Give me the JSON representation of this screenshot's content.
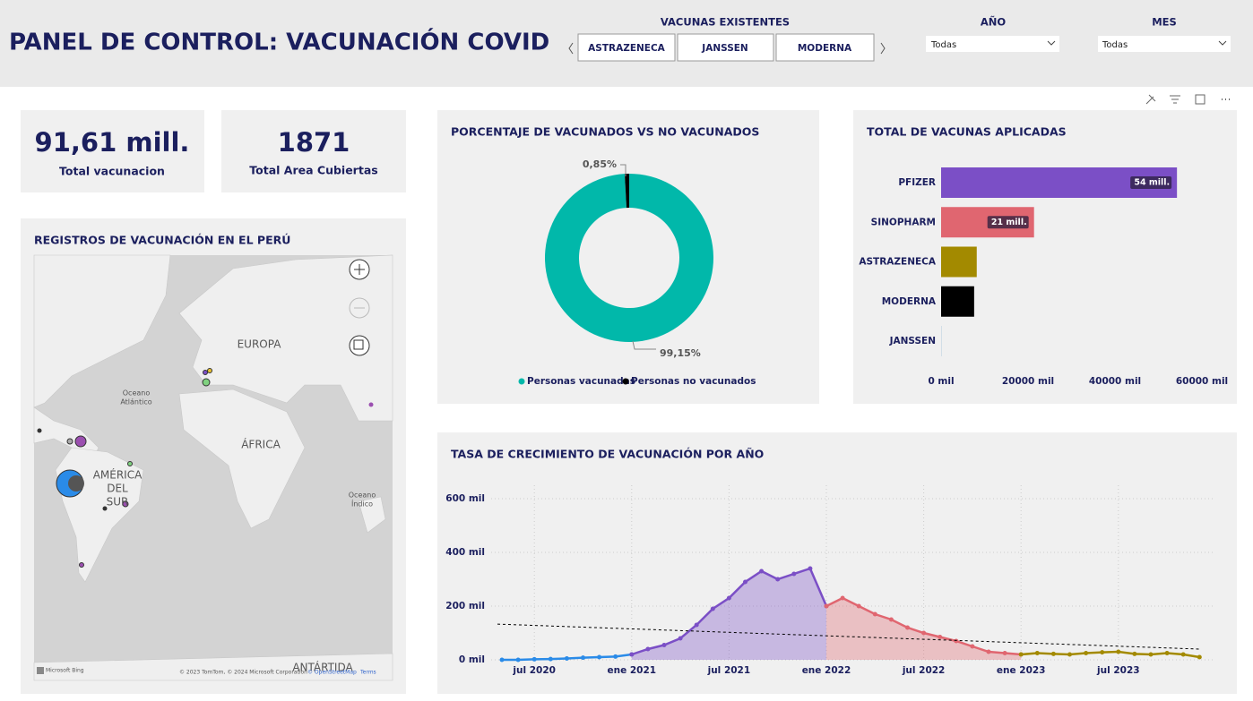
{
  "header": {
    "title": "PANEL DE CONTROL: VACUNACIÓN COVID",
    "vaccine_slicer": {
      "label": "VACUNAS EXISTENTES",
      "options": [
        "ASTRAZENECA",
        "JANSSEN",
        "MODERNA"
      ]
    },
    "year_slicer": {
      "label": "AÑO",
      "value": "Todas"
    },
    "month_slicer": {
      "label": "MES",
      "value": "Todas"
    }
  },
  "kpis": [
    {
      "value": "91,61 mill.",
      "label": "Total vacunacion"
    },
    {
      "value": "1871",
      "label": "Total Area Cubiertas"
    }
  ],
  "map": {
    "title": "REGISTROS DE VACUNACIÓN EN EL PERÚ",
    "labels": [
      "EUROPA",
      "ÁFRICA",
      "AMÉRICA",
      "DEL",
      "SUR",
      "Oceano",
      "Atlántico",
      "Oceano",
      "Índico",
      "ANTÁRTIDA"
    ],
    "attribution": [
      "Microsoft Bing",
      "© 2023 TomTom, © 2024 Microsoft Corporation",
      "© OpenStreetMap",
      "Terms"
    ]
  },
  "chart_data": [
    {
      "type": "donut",
      "title": "PORCENTAJE DE VACUNADOS VS NO VACUNADOS",
      "categories": [
        "Personas vacunadas",
        "Personas no vacunados"
      ],
      "values": [
        99.15,
        0.85
      ],
      "value_labels": [
        "99,15%",
        "0,85%"
      ],
      "colors": [
        "#01B8AA",
        "#000000"
      ]
    },
    {
      "type": "bar",
      "orientation": "horizontal",
      "title": "TOTAL DE VACUNAS APLICADAS",
      "categories": [
        "PFIZER",
        "SINOPHARM",
        "ASTRAZENECA",
        "MODERNA",
        "JANSSEN"
      ],
      "values": [
        54260000,
        21380000,
        8200000,
        7600000,
        30000
      ],
      "value_labels": [
        "54 mill.",
        "21 mill.",
        null,
        null,
        null
      ],
      "colors": [
        "#7B4FC6",
        "#E06670",
        "#A38A00",
        "#000000",
        "#1F77B4"
      ],
      "xlim": [
        0,
        60000000
      ],
      "xticks": [
        {
          "value": 0,
          "label": "0 mil"
        },
        {
          "value": 20000000,
          "label": "20000 mil"
        },
        {
          "value": 40000000,
          "label": "40000 mil"
        },
        {
          "value": 60000000,
          "label": "60000 mil"
        }
      ]
    },
    {
      "type": "line",
      "title": "TASA DE CRECIMIENTO DE VACUNACIÓN POR AÑO",
      "categories": [
        null,
        null,
        "jul 2020",
        null,
        null,
        null,
        null,
        null,
        "ene 2021",
        null,
        null,
        null,
        null,
        null,
        "jul 2021",
        null,
        null,
        null,
        null,
        null,
        "ene 2022",
        null,
        null,
        null,
        null,
        null,
        "jul 2022",
        null,
        null,
        null,
        null,
        null,
        "ene 2023",
        null,
        null,
        null,
        null,
        null,
        "jul 2023",
        null,
        null,
        null,
        null,
        null
      ],
      "ylim": [
        0,
        650000
      ],
      "yticks": [
        {
          "value": 0,
          "label": "0 mil"
        },
        {
          "value": 200000,
          "label": "200 mil"
        },
        {
          "value": 400000,
          "label": "400 mil"
        },
        {
          "value": 600000,
          "label": "600 mil"
        }
      ],
      "grid": true,
      "series": [
        {
          "color": "#2A8BE8",
          "values": [
            0,
            0,
            2000,
            3000,
            5000,
            8000,
            10000,
            12000,
            20000,
            null,
            null,
            null,
            null,
            null,
            null,
            null,
            null,
            null,
            null,
            null,
            null,
            null,
            null,
            null,
            null,
            null,
            null,
            null,
            null,
            null,
            null,
            null,
            null,
            null,
            null,
            null,
            null,
            null,
            null,
            null,
            null,
            null,
            null,
            null
          ]
        },
        {
          "color": "#7B4FC6",
          "area": true,
          "values": [
            null,
            null,
            null,
            null,
            null,
            null,
            null,
            null,
            20000,
            40000,
            55000,
            80000,
            130000,
            190000,
            230000,
            290000,
            330000,
            300000,
            320000,
            340000,
            200000,
            null,
            null,
            null,
            null,
            null,
            null,
            null,
            null,
            null,
            null,
            null,
            null,
            null,
            null,
            null,
            null,
            null,
            null,
            null,
            null,
            null,
            null,
            null
          ]
        },
        {
          "color": "#E06670",
          "area": true,
          "values": [
            null,
            null,
            null,
            null,
            null,
            null,
            null,
            null,
            null,
            null,
            null,
            null,
            null,
            null,
            null,
            null,
            null,
            null,
            null,
            null,
            200000,
            230000,
            200000,
            170000,
            150000,
            120000,
            100000,
            85000,
            70000,
            50000,
            30000,
            25000,
            20000,
            null,
            null,
            null,
            null,
            null,
            null,
            null,
            null,
            null,
            null,
            null
          ]
        },
        {
          "color": "#A38A00",
          "values": [
            null,
            null,
            null,
            null,
            null,
            null,
            null,
            null,
            null,
            null,
            null,
            null,
            null,
            null,
            null,
            null,
            null,
            null,
            null,
            null,
            null,
            null,
            null,
            null,
            null,
            null,
            null,
            null,
            null,
            null,
            null,
            null,
            20000,
            25000,
            22000,
            20000,
            25000,
            28000,
            30000,
            22000,
            20000,
            25000,
            20000,
            10000
          ]
        }
      ],
      "trend": {
        "values": [
          133000,
          40000
        ],
        "color": "#000000",
        "dashed": true
      }
    }
  ]
}
